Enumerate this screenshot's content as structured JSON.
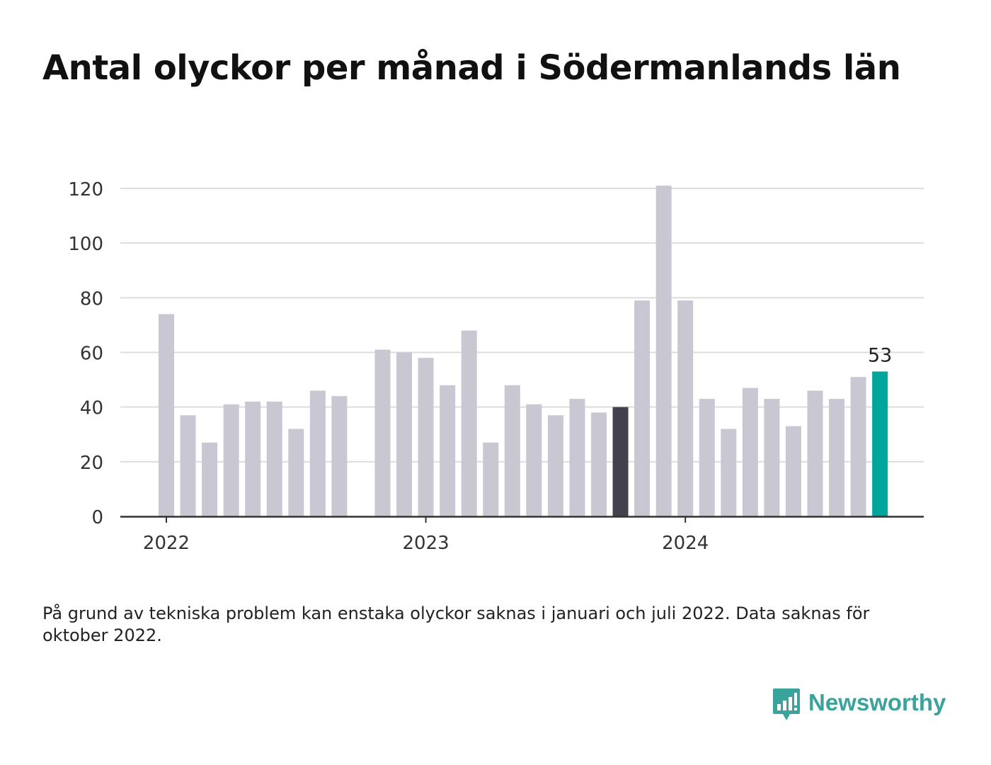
{
  "title": "Antal olyckor per månad i Södermanlands län",
  "footnote": "På grund av tekniska problem kan enstaka olyckor saknas i januari och juli 2022. Data saknas för oktober 2022.",
  "brand": {
    "name": "Newsworthy",
    "icon": "newsworthy-logo-icon",
    "color": "#3aa39b"
  },
  "chart_data": {
    "type": "bar",
    "title": "Antal olyckor per månad i Södermanlands län",
    "xlabel": "",
    "ylabel": "",
    "ylim": [
      0,
      120
    ],
    "yticks": [
      0,
      20,
      40,
      60,
      80,
      100,
      120
    ],
    "xtick_labels": [
      "2022",
      "2023",
      "2024"
    ],
    "grid": true,
    "colors": {
      "default": "#c8c7d2",
      "highlight_dark": "#43414d",
      "highlight_latest": "#00a59b"
    },
    "categories": [
      "2022-01",
      "2022-02",
      "2022-03",
      "2022-04",
      "2022-05",
      "2022-06",
      "2022-07",
      "2022-08",
      "2022-09",
      "2022-10",
      "2022-11",
      "2022-12",
      "2023-01",
      "2023-02",
      "2023-03",
      "2023-04",
      "2023-05",
      "2023-06",
      "2023-07",
      "2023-08",
      "2023-09",
      "2023-10",
      "2023-11",
      "2023-12",
      "2024-01",
      "2024-02",
      "2024-03",
      "2024-04",
      "2024-05",
      "2024-06",
      "2024-07",
      "2024-08",
      "2024-09",
      "2024-10"
    ],
    "values": [
      74,
      37,
      27,
      41,
      42,
      42,
      32,
      46,
      44,
      null,
      61,
      60,
      58,
      48,
      68,
      27,
      48,
      41,
      37,
      43,
      38,
      40,
      79,
      121,
      79,
      43,
      32,
      47,
      43,
      33,
      46,
      43,
      51,
      53
    ],
    "highlight_dark_index": 21,
    "highlight_latest_index": 33,
    "data_labels": [
      {
        "index": 33,
        "text": "53"
      }
    ]
  }
}
